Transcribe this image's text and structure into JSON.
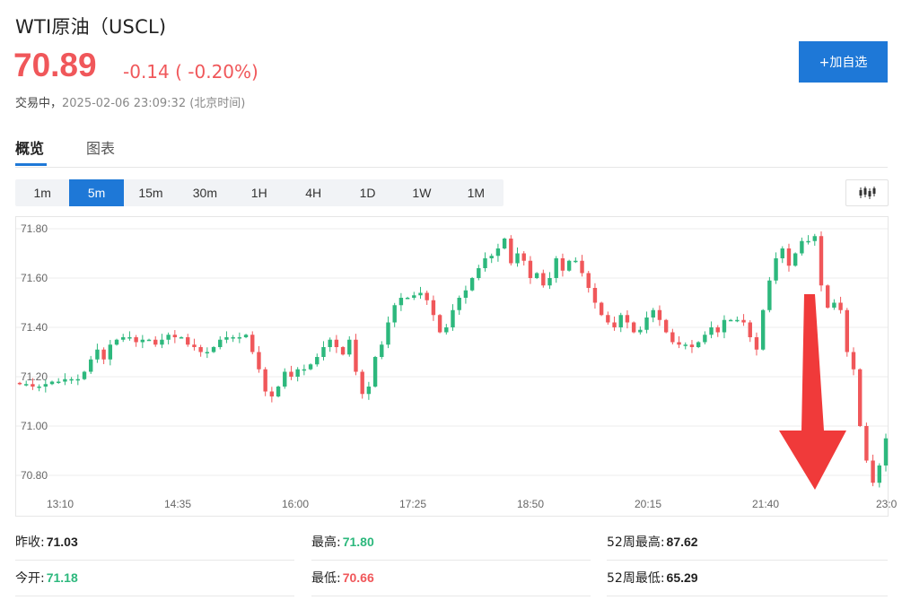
{
  "header": {
    "title": "WTI原油（USCL)",
    "price": "70.89",
    "change": "-0.14 ( -0.20%)",
    "status_label": "交易中，",
    "timestamp": "2025-02-06 23:09:32 (北京时间)",
    "add_watchlist_label": "+加自选"
  },
  "tabs": [
    {
      "label": "概览",
      "active": true
    },
    {
      "label": "图表",
      "active": false
    }
  ],
  "periods": [
    {
      "label": "1m",
      "active": false
    },
    {
      "label": "5m",
      "active": true
    },
    {
      "label": "15m",
      "active": false
    },
    {
      "label": "30m",
      "active": false
    },
    {
      "label": "1H",
      "active": false
    },
    {
      "label": "4H",
      "active": false
    },
    {
      "label": "1D",
      "active": false
    },
    {
      "label": "1W",
      "active": false
    },
    {
      "label": "1M",
      "active": false
    }
  ],
  "chart_type_icon": "candlestick-icon",
  "colors": {
    "up": "#2db87d",
    "down": "#f0575a",
    "accent": "#1e78d7",
    "arrow": "#f03a3a"
  },
  "stats": {
    "prev_close_label": "昨收:",
    "prev_close": "71.03",
    "high_label": "最高:",
    "high": "71.80",
    "week52_high_label": "52周最高:",
    "week52_high": "87.62",
    "open_label": "今开:",
    "open": "71.18",
    "low_label": "最低:",
    "low": "70.66",
    "week52_low_label": "52周最低:",
    "week52_low": "65.29"
  },
  "chart_data": {
    "type": "candlestick",
    "ylim": [
      70.75,
      71.82
    ],
    "y_ticks": [
      "71.80",
      "71.60",
      "71.40",
      "71.20",
      "71.00",
      "70.80"
    ],
    "x_ticks": [
      "13:10",
      "14:35",
      "16:00",
      "17:25",
      "18:50",
      "20:15",
      "21:40",
      "23:0"
    ],
    "grid": true,
    "closes": [
      71.17,
      71.17,
      71.16,
      71.16,
      71.17,
      71.18,
      71.18,
      71.19,
      71.19,
      71.19,
      71.22,
      71.27,
      71.31,
      71.27,
      71.33,
      71.35,
      71.36,
      71.36,
      71.34,
      71.35,
      71.35,
      71.33,
      71.35,
      71.37,
      71.36,
      71.36,
      71.33,
      71.32,
      71.3,
      71.3,
      71.32,
      71.35,
      71.36,
      71.36,
      71.36,
      71.37,
      71.3,
      71.23,
      71.14,
      71.12,
      71.16,
      71.22,
      71.2,
      71.23,
      71.23,
      71.25,
      71.28,
      71.32,
      71.35,
      71.32,
      71.29,
      71.35,
      71.22,
      71.13,
      71.16,
      71.28,
      71.33,
      71.42,
      71.49,
      71.52,
      71.52,
      71.53,
      71.54,
      71.51,
      71.45,
      71.38,
      71.4,
      71.47,
      71.52,
      71.55,
      71.6,
      71.64,
      71.68,
      71.69,
      71.72,
      71.76,
      71.66,
      71.7,
      71.67,
      71.6,
      71.62,
      71.57,
      71.6,
      71.68,
      71.63,
      71.67,
      71.67,
      71.62,
      71.56,
      71.5,
      71.45,
      71.42,
      71.4,
      71.45,
      71.42,
      71.38,
      71.39,
      71.44,
      71.47,
      71.43,
      71.38,
      71.34,
      71.33,
      71.33,
      71.32,
      71.34,
      71.37,
      71.4,
      71.38,
      71.43,
      71.43,
      71.43,
      71.42,
      71.36,
      71.31,
      71.47,
      71.59,
      71.68,
      71.72,
      71.65,
      71.7,
      71.75,
      71.75,
      71.77,
      71.57,
      71.48,
      71.5,
      71.47,
      71.3,
      71.23,
      71.0,
      70.86,
      70.77,
      70.84,
      70.95
    ]
  }
}
